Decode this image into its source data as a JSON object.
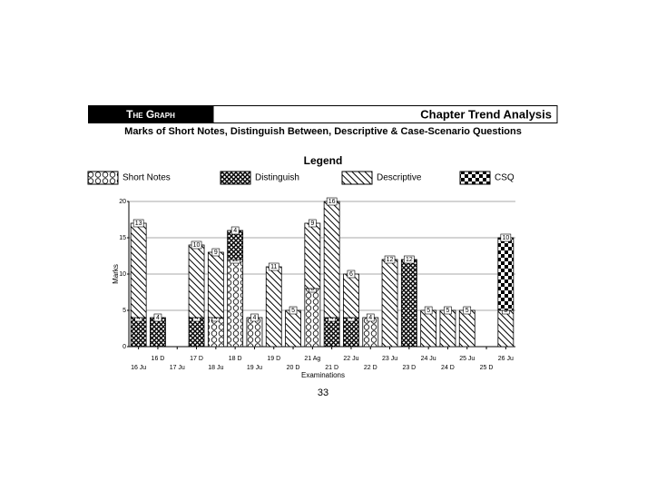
{
  "header": {
    "section": "The Graph",
    "title": "Chapter Trend Analysis"
  },
  "page_number": "33",
  "chart_data": {
    "type": "bar",
    "stacked": true,
    "title": "Marks of Short Notes, Distinguish Between, Descriptive & Case-Scenario Questions",
    "legend_title": "Legend",
    "x_label": "Examinations",
    "y_label": "Marks",
    "categories": [
      "16 Ju",
      "16 D",
      "17 Ju",
      "17 D",
      "18 Ju",
      "18 D",
      "19 Ju",
      "19 D",
      "20 D",
      "21 Ag",
      "21 D",
      "22 Ju",
      "22 D",
      "23 Ju",
      "23 D",
      "24 Ju",
      "24 D",
      "25 Ju",
      "25 D",
      "26 Ju"
    ],
    "series": [
      {
        "name": "Short Notes",
        "color": "#000000",
        "pattern": "hex",
        "values": [
          null,
          null,
          null,
          null,
          4,
          12,
          4,
          null,
          null,
          8,
          null,
          null,
          4,
          null,
          null,
          null,
          null,
          null,
          null,
          null
        ]
      },
      {
        "name": "Distinguish",
        "color": "#000000",
        "pattern": "cross",
        "values": [
          4,
          4,
          null,
          4,
          null,
          4,
          null,
          null,
          null,
          null,
          4,
          4,
          null,
          null,
          12,
          null,
          null,
          null,
          null,
          null
        ]
      },
      {
        "name": "Descriptive",
        "color": "#000000",
        "pattern": "diag",
        "values": [
          13,
          null,
          null,
          10,
          9,
          null,
          null,
          11,
          5,
          9,
          16,
          6,
          null,
          12,
          null,
          5,
          5,
          5,
          null,
          5
        ]
      },
      {
        "name": "CSQ",
        "color": "#000000",
        "pattern": "check",
        "values": [
          null,
          null,
          null,
          null,
          null,
          null,
          null,
          null,
          null,
          null,
          null,
          null,
          null,
          null,
          null,
          null,
          null,
          null,
          null,
          10
        ]
      }
    ],
    "ylim": [
      0,
      20
    ],
    "yticks": [
      0,
      5,
      10,
      15,
      20
    ],
    "grid": true
  }
}
